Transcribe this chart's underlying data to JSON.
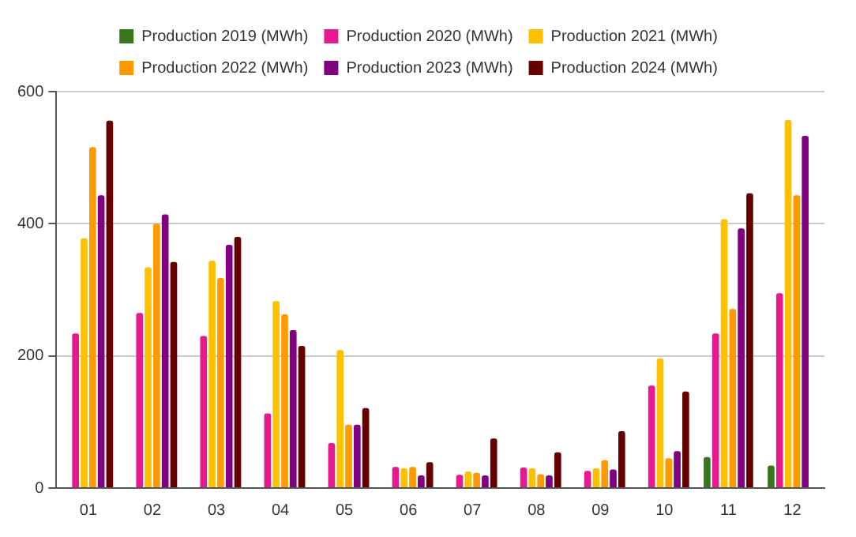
{
  "chart_data": {
    "type": "bar",
    "categories": [
      "01",
      "02",
      "03",
      "04",
      "05",
      "06",
      "07",
      "08",
      "09",
      "10",
      "11",
      "12"
    ],
    "series": [
      {
        "name": "Production 2019 (MWh)",
        "color": "#38761d",
        "values": [
          null,
          null,
          null,
          null,
          null,
          null,
          null,
          null,
          null,
          null,
          47,
          34
        ]
      },
      {
        "name": "Production 2020 (MWh)",
        "color": "#e6198f",
        "values": [
          234,
          265,
          230,
          113,
          68,
          32,
          20,
          31,
          26,
          155,
          234,
          295
        ]
      },
      {
        "name": "Production 2021 (MWh)",
        "color": "#ffc000",
        "values": [
          378,
          334,
          344,
          283,
          209,
          30,
          25,
          30,
          30,
          196,
          407,
          557
        ]
      },
      {
        "name": "Production 2022 (MWh)",
        "color": "#ff9900",
        "values": [
          516,
          400,
          318,
          263,
          96,
          32,
          23,
          21,
          42,
          45,
          271,
          443
        ]
      },
      {
        "name": "Production 2023 (MWh)",
        "color": "#800080",
        "values": [
          443,
          414,
          368,
          239,
          96,
          19,
          19,
          19,
          28,
          56,
          393,
          533
        ]
      },
      {
        "name": "Production 2024 (MWh)",
        "color": "#660000",
        "values": [
          556,
          342,
          380,
          215,
          121,
          39,
          75,
          54,
          86,
          146,
          446,
          null
        ]
      }
    ],
    "ylim": [
      0,
      600
    ],
    "yticks": [
      0,
      200,
      400,
      600
    ],
    "grid": "y",
    "legend": "top"
  }
}
